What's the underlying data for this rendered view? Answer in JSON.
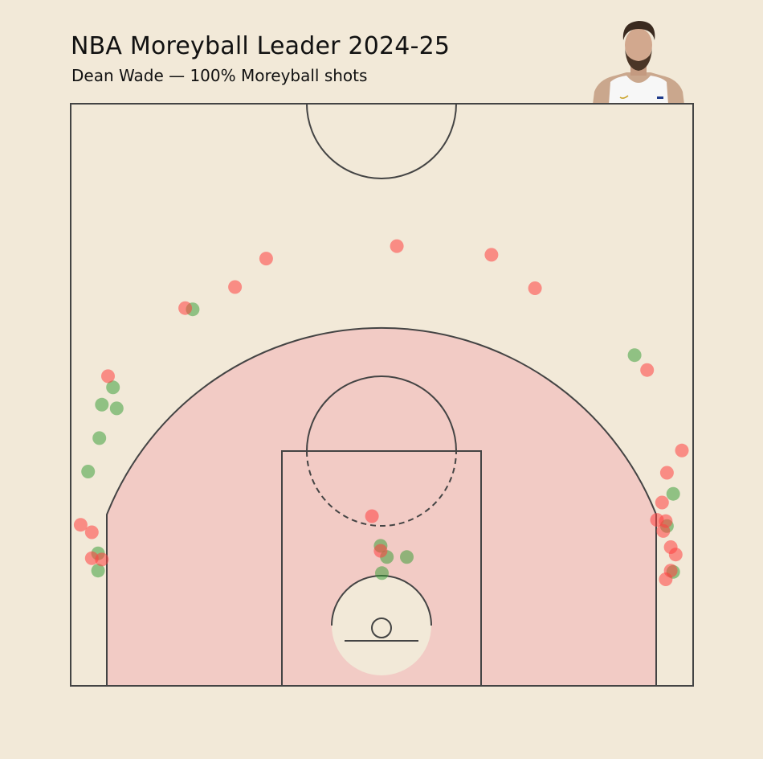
{
  "title": "NBA Moreyball Leader 2024-25",
  "subtitle": "Dean Wade — 100% Moreyball shots",
  "player_photo_icon": "player-headshot",
  "colors": {
    "background": "#f2e9d8",
    "paint_zone": "#f2cbc5",
    "court_lines": "#444444",
    "made": "#2e9a2e",
    "missed": "#ff4040"
  },
  "chart_data": {
    "type": "scatter",
    "title": "NBA Moreyball Leader 2024-25",
    "subtitle": "Dean Wade — 100% Moreyball shots",
    "xlabel": "",
    "ylabel": "",
    "xlim": [
      -250,
      250
    ],
    "ylim": [
      -52,
      418
    ],
    "grid": false,
    "series": [
      {
        "color": "#2e9a2e",
        "points": [
          [
            -236,
            121
          ],
          [
            -227,
            148
          ],
          [
            -225,
            175
          ],
          [
            -213,
            172
          ],
          [
            -216,
            189
          ],
          [
            -228,
            55
          ],
          [
            -228,
            41
          ],
          [
            -152,
            252
          ],
          [
            -1,
            61
          ],
          [
            4,
            52
          ],
          [
            20,
            52
          ],
          [
            0,
            39
          ],
          [
            203,
            215
          ],
          [
            234,
            103
          ],
          [
            229,
            77
          ],
          [
            234,
            40
          ]
        ]
      },
      {
        "color": "#ff4040",
        "points": [
          [
            -220,
            198
          ],
          [
            -158,
            253
          ],
          [
            -118,
            270
          ],
          [
            -93,
            293
          ],
          [
            12,
            303
          ],
          [
            88,
            296
          ],
          [
            123,
            269
          ],
          [
            213,
            203
          ],
          [
            -242,
            78
          ],
          [
            -233,
            72
          ],
          [
            -233,
            51
          ],
          [
            -225,
            50
          ],
          [
            -8,
            85
          ],
          [
            -1,
            57
          ],
          [
            241,
            138
          ],
          [
            229,
            120
          ],
          [
            225,
            96
          ],
          [
            221,
            82
          ],
          [
            228,
            81
          ],
          [
            226,
            73
          ],
          [
            232,
            60
          ],
          [
            236,
            54
          ],
          [
            232,
            41
          ],
          [
            228,
            34
          ]
        ]
      }
    ]
  }
}
